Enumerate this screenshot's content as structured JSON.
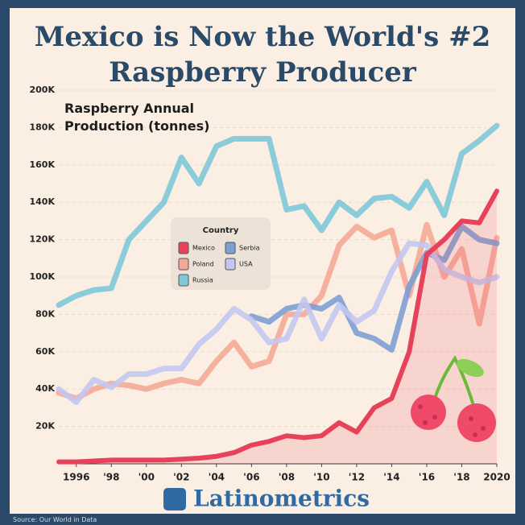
{
  "chart_data": {
    "type": "line",
    "title": "Mexico is Now the World's #2 Raspberry Producer",
    "y_label": "Raspberry Annual Production (tonnes)",
    "legend_title": "Country",
    "brand": "Latinometrics",
    "source": "Source: Our World in Data",
    "x": [
      1995,
      1996,
      1997,
      1998,
      1999,
      2000,
      2001,
      2002,
      2003,
      2004,
      2005,
      2006,
      2007,
      2008,
      2009,
      2010,
      2011,
      2012,
      2013,
      2014,
      2015,
      2016,
      2017,
      2018,
      2019,
      2020
    ],
    "xlim": [
      1995,
      2020
    ],
    "xticks": [
      1996,
      {
        "value": 1998,
        "label": "'98"
      },
      {
        "value": 2000,
        "label": "'00"
      },
      {
        "value": 2002,
        "label": "'02"
      },
      {
        "value": 2004,
        "label": "'04"
      },
      {
        "value": 2006,
        "label": "'06"
      },
      {
        "value": 2008,
        "label": "'08"
      },
      {
        "value": 2010,
        "label": "'10"
      },
      {
        "value": 2012,
        "label": "'12"
      },
      {
        "value": 2014,
        "label": "'14"
      },
      {
        "value": 2016,
        "label": "'16"
      },
      {
        "value": 2018,
        "label": "'18"
      },
      2020
    ],
    "ylim": [
      0,
      200000
    ],
    "yticks": [
      {
        "value": 20000,
        "label": "20K"
      },
      {
        "value": 40000,
        "label": "40K"
      },
      {
        "value": 60000,
        "label": "60K"
      },
      {
        "value": 80000,
        "label": "80K"
      },
      {
        "value": 100000,
        "label": "100K"
      },
      {
        "value": 120000,
        "label": "120K"
      },
      {
        "value": 140000,
        "label": "140K"
      },
      {
        "value": 160000,
        "label": "160K"
      },
      {
        "value": 180000,
        "label": "180K"
      },
      {
        "value": 200000,
        "label": "200K"
      }
    ],
    "grid": true,
    "series": [
      {
        "name": "Mexico",
        "color": "#e8425a",
        "area": true,
        "values": [
          1000,
          1000,
          1500,
          2000,
          2000,
          2000,
          2000,
          2500,
          3000,
          4000,
          6000,
          10000,
          12000,
          15000,
          14000,
          15000,
          22000,
          17000,
          30000,
          35000,
          60000,
          112000,
          120000,
          130000,
          129000,
          146000
        ]
      },
      {
        "name": "Poland",
        "color": "#f4a896",
        "values": [
          38000,
          35000,
          40000,
          43000,
          42000,
          40000,
          43000,
          45000,
          43000,
          55000,
          65000,
          52000,
          55000,
          80000,
          80000,
          90000,
          117000,
          127000,
          121000,
          125000,
          90000,
          128000,
          100000,
          115000,
          75000,
          121000
        ]
      },
      {
        "name": "Russia",
        "color": "#7ec8d8",
        "values": [
          85000,
          90000,
          93000,
          94000,
          120000,
          130000,
          140000,
          164000,
          150000,
          170000,
          174000,
          174000,
          174000,
          136000,
          138000,
          125000,
          140000,
          133000,
          142000,
          143000,
          137000,
          151000,
          133000,
          166000,
          173000,
          181000
        ]
      },
      {
        "name": "Serbia",
        "color": "#7d9fd4",
        "values": [
          null,
          null,
          null,
          null,
          null,
          null,
          null,
          null,
          null,
          null,
          null,
          79000,
          76000,
          83000,
          85000,
          83000,
          89000,
          70000,
          67000,
          61000,
          95000,
          113000,
          109000,
          127000,
          120000,
          118000
        ]
      },
      {
        "name": "USA",
        "color": "#c4c8f0",
        "values": [
          40000,
          33000,
          45000,
          41000,
          48000,
          48000,
          51000,
          51000,
          64000,
          72000,
          83000,
          77000,
          65000,
          67000,
          88000,
          67000,
          85000,
          76000,
          82000,
          103000,
          118000,
          117000,
          104000,
          100000,
          97000,
          100000
        ]
      }
    ]
  }
}
